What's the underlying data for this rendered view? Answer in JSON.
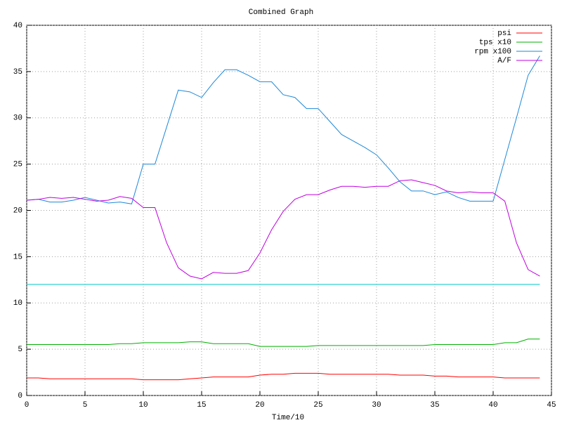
{
  "chart_data": {
    "type": "line",
    "title": "Combined Graph",
    "x_label": "Time/10",
    "x": [
      0,
      1,
      2,
      3,
      4,
      5,
      6,
      7,
      8,
      9,
      10,
      11,
      12,
      13,
      14,
      15,
      16,
      17,
      18,
      19,
      20,
      21,
      22,
      23,
      24,
      25,
      26,
      27,
      28,
      29,
      30,
      31,
      32,
      33,
      34,
      35,
      36,
      37,
      38,
      39,
      40,
      41,
      42,
      43,
      44
    ],
    "xlim": [
      0,
      45
    ],
    "xticks": [
      0,
      5,
      10,
      15,
      20,
      25,
      30,
      35,
      40,
      45
    ],
    "ylim": [
      0,
      40
    ],
    "yticks": [
      0,
      5,
      10,
      15,
      20,
      25,
      30,
      35,
      40
    ],
    "grid": true,
    "legend": "top-right",
    "series": [
      {
        "name": "psi",
        "color": "#ff0000",
        "values": [
          1.9,
          1.9,
          1.8,
          1.8,
          1.8,
          1.8,
          1.8,
          1.8,
          1.8,
          1.8,
          1.7,
          1.7,
          1.7,
          1.7,
          1.8,
          1.9,
          2.0,
          2.0,
          2.0,
          2.0,
          2.2,
          2.3,
          2.3,
          2.4,
          2.4,
          2.4,
          2.3,
          2.3,
          2.3,
          2.3,
          2.3,
          2.3,
          2.2,
          2.2,
          2.2,
          2.1,
          2.1,
          2.0,
          2.0,
          2.0,
          2.0,
          1.9,
          1.9,
          1.9,
          1.9
        ]
      },
      {
        "name": "tps x10",
        "color": "#00b000",
        "values": [
          5.5,
          5.5,
          5.5,
          5.5,
          5.5,
          5.5,
          5.5,
          5.5,
          5.6,
          5.6,
          5.7,
          5.7,
          5.7,
          5.7,
          5.8,
          5.8,
          5.6,
          5.6,
          5.6,
          5.6,
          5.3,
          5.3,
          5.3,
          5.3,
          5.3,
          5.4,
          5.4,
          5.4,
          5.4,
          5.4,
          5.4,
          5.4,
          5.4,
          5.4,
          5.4,
          5.5,
          5.5,
          5.5,
          5.5,
          5.5,
          5.5,
          5.7,
          5.7,
          6.1,
          6.1
        ]
      },
      {
        "name": "rpm x100",
        "color": "#1e88d8",
        "values": [
          21.1,
          21.2,
          20.9,
          20.9,
          21.1,
          21.4,
          21.1,
          20.8,
          20.9,
          20.7,
          25.0,
          25.0,
          29.0,
          33.0,
          32.8,
          32.2,
          33.8,
          35.2,
          35.2,
          34.6,
          33.9,
          33.9,
          32.5,
          32.2,
          31.0,
          31.0,
          29.6,
          28.2,
          27.5,
          26.8,
          26.0,
          24.6,
          23.1,
          22.1,
          22.1,
          21.7,
          22.0,
          21.4,
          21.0,
          21.0,
          21.0,
          25.5,
          30.0,
          34.6,
          36.7
        ]
      },
      {
        "name": "A/F",
        "color": "#c000e0",
        "values": [
          21.1,
          21.2,
          21.4,
          21.3,
          21.4,
          21.2,
          21.0,
          21.1,
          21.5,
          21.3,
          20.3,
          20.3,
          16.5,
          13.8,
          12.9,
          12.6,
          13.3,
          13.2,
          13.2,
          13.5,
          15.4,
          17.9,
          19.9,
          21.2,
          21.7,
          21.7,
          22.2,
          22.6,
          22.6,
          22.5,
          22.6,
          22.6,
          23.2,
          23.3,
          23.0,
          22.7,
          22.1,
          21.9,
          22.0,
          21.9,
          21.9,
          21.0,
          16.5,
          13.6,
          12.9
        ]
      },
      {
        "color": "#00c8c8",
        "values": [
          12,
          12,
          12,
          12,
          12,
          12,
          12,
          12,
          12,
          12,
          12,
          12,
          12,
          12,
          12,
          12,
          12,
          12,
          12,
          12,
          12,
          12,
          12,
          12,
          12,
          12,
          12,
          12,
          12,
          12,
          12,
          12,
          12,
          12,
          12,
          12,
          12,
          12,
          12,
          12,
          12,
          12,
          12,
          12,
          12
        ]
      }
    ]
  }
}
